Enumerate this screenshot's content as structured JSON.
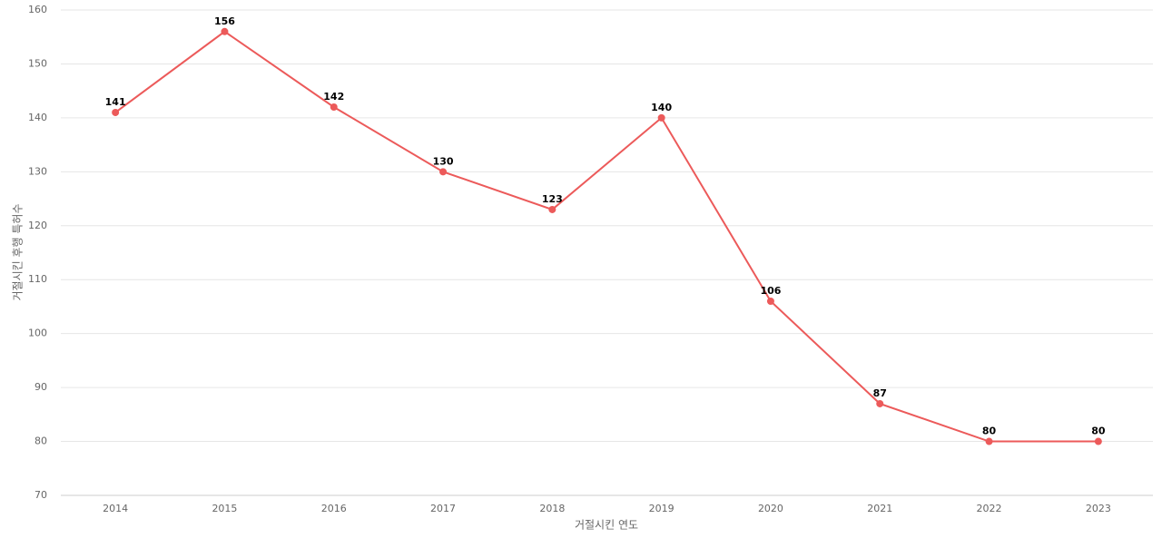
{
  "chart_data": {
    "type": "line",
    "categories": [
      "2014",
      "2015",
      "2016",
      "2017",
      "2018",
      "2019",
      "2020",
      "2021",
      "2022",
      "2023"
    ],
    "series": [
      {
        "name": "거절시킨 후행 특허수",
        "color": "#ec5a5a",
        "values": [
          141,
          156,
          142,
          130,
          123,
          140,
          106,
          87,
          80,
          80
        ]
      }
    ],
    "x_label": "거절시킨 연도",
    "y_label": "거절시킨 후행 특허수",
    "ylim": [
      70,
      160
    ],
    "yticks": [
      70,
      80,
      90,
      100,
      110,
      120,
      130,
      140,
      150,
      160
    ],
    "grid": true,
    "show_legend": false
  }
}
